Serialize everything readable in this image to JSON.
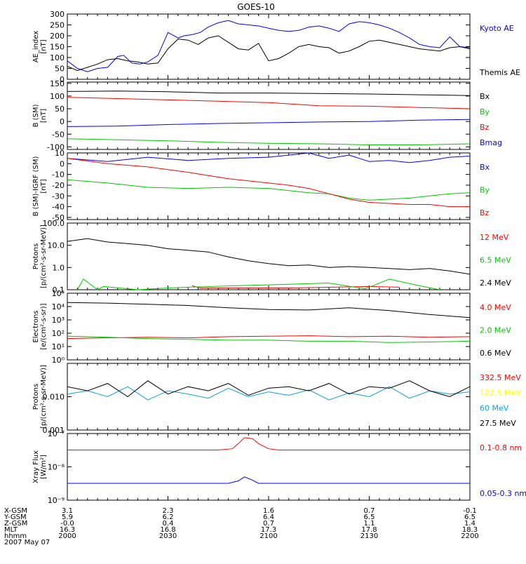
{
  "figure": {
    "title": "GOES-10",
    "date_label": "2007 May 07",
    "colors": {
      "black": "#000000",
      "blue": "#0000ff",
      "red": "#ff0000",
      "green": "#00c800",
      "yellow": "#ffff00",
      "cyan": "#0aa0dc"
    }
  },
  "chart_data": [
    {
      "type": "line",
      "ylabel": [
        "AE_index",
        "[nT]"
      ],
      "yscale": "linear",
      "ylim": [
        0,
        300
      ],
      "yticks": [
        0,
        50,
        100,
        150,
        200,
        250,
        300
      ],
      "yticklabels": [
        "0",
        "50",
        "100",
        "150",
        "200",
        "250",
        "300"
      ],
      "series": [
        {
          "name": "Kyoto AE",
          "color": "#0000ff",
          "x": [
            0,
            5,
            10,
            15,
            20,
            25,
            28,
            32,
            36,
            40,
            45,
            50,
            55,
            58,
            62,
            66,
            70,
            75,
            80,
            85,
            90,
            95,
            100,
            105,
            110,
            115,
            120,
            125,
            130,
            135,
            140,
            145,
            150,
            155,
            160,
            165,
            170,
            175,
            180,
            185,
            190,
            195,
            200
          ],
          "y": [
            85,
            50,
            35,
            50,
            55,
            105,
            110,
            75,
            70,
            80,
            110,
            215,
            190,
            200,
            205,
            215,
            240,
            260,
            270,
            255,
            250,
            245,
            235,
            225,
            220,
            225,
            240,
            245,
            235,
            220,
            255,
            265,
            260,
            250,
            235,
            215,
            190,
            160,
            150,
            145,
            195,
            150,
            145
          ]
        },
        {
          "name": "Themis AE",
          "color": "#000000",
          "x": [
            0,
            5,
            10,
            15,
            20,
            25,
            30,
            35,
            40,
            45,
            50,
            55,
            60,
            65,
            70,
            75,
            80,
            85,
            90,
            95,
            100,
            105,
            110,
            115,
            120,
            125,
            130,
            135,
            140,
            145,
            150,
            155,
            160,
            165,
            170,
            175,
            180,
            185,
            190,
            195,
            200
          ],
          "y": [
            60,
            40,
            55,
            70,
            90,
            95,
            85,
            80,
            70,
            75,
            140,
            185,
            180,
            160,
            190,
            200,
            170,
            140,
            135,
            165,
            85,
            95,
            120,
            150,
            160,
            150,
            145,
            120,
            130,
            150,
            175,
            180,
            170,
            160,
            150,
            140,
            135,
            130,
            145,
            150,
            140
          ]
        }
      ]
    },
    {
      "type": "line",
      "ylabel": [
        "B (SM)",
        "[nT]"
      ],
      "yscale": "linear",
      "ylim": [
        -110,
        155
      ],
      "yticks": [
        -100,
        -50,
        0,
        50,
        100,
        150
      ],
      "yticklabels": [
        "-100",
        "-50",
        "0",
        "50",
        "100",
        "150"
      ],
      "series": [
        {
          "name": "Bx",
          "color": "#000000",
          "x": [
            0,
            25,
            50,
            75,
            100,
            125,
            150,
            175,
            200
          ],
          "y": [
            118,
            120,
            117,
            112,
            112,
            110,
            108,
            105,
            102
          ]
        },
        {
          "name": "By",
          "color": "#00c800",
          "x": [
            0,
            25,
            50,
            75,
            100,
            125,
            150,
            175,
            200
          ],
          "y": [
            -68,
            -72,
            -76,
            -82,
            -86,
            -88,
            -92,
            -92,
            -88
          ]
        },
        {
          "name": "Bz",
          "color": "#ff0000",
          "x": [
            0,
            25,
            50,
            75,
            100,
            125,
            150,
            175,
            200
          ],
          "y": [
            95,
            90,
            85,
            80,
            74,
            62,
            60,
            55,
            50
          ]
        },
        {
          "name": "Bmag",
          "color": "#0000ff",
          "x": [
            0,
            25,
            50,
            75,
            100,
            125,
            150,
            175,
            200
          ],
          "y": [
            -20,
            -18,
            -12,
            -8,
            -5,
            -2,
            0,
            5,
            8
          ]
        }
      ]
    },
    {
      "type": "line",
      "ylabel": [
        "B (SM)-IGRF (SM)",
        "[nT]"
      ],
      "yscale": "linear",
      "ylim": [
        -52,
        10
      ],
      "yticks": [
        -50,
        -40,
        -30,
        -20,
        -10,
        0,
        10
      ],
      "yticklabels": [
        "-50",
        "-40",
        "-30",
        "-20",
        "-10",
        "0",
        "10"
      ],
      "series": [
        {
          "name": "Bx",
          "color": "#0000ff",
          "x": [
            0,
            20,
            40,
            60,
            80,
            100,
            110,
            120,
            130,
            140,
            150,
            160,
            170,
            180,
            190,
            200
          ],
          "y": [
            5,
            2,
            6,
            3,
            5,
            6,
            8,
            10,
            5,
            8,
            2,
            3,
            1,
            3,
            6,
            7
          ]
        },
        {
          "name": "By",
          "color": "#00c800",
          "x": [
            0,
            20,
            40,
            60,
            80,
            100,
            110,
            120,
            130,
            140,
            150,
            160,
            170,
            180,
            190,
            200
          ],
          "y": [
            -15,
            -18,
            -22,
            -23,
            -22,
            -23,
            -25,
            -27,
            -28,
            -32,
            -34,
            -33,
            -32,
            -30,
            -28,
            -27
          ]
        },
        {
          "name": "Bz",
          "color": "#ff0000",
          "x": [
            0,
            20,
            40,
            60,
            80,
            100,
            110,
            120,
            130,
            140,
            150,
            160,
            170,
            180,
            190,
            200
          ],
          "y": [
            5,
            0,
            -3,
            -8,
            -14,
            -18,
            -20,
            -23,
            -28,
            -33,
            -36,
            -37,
            -38,
            -38,
            -40,
            -40
          ]
        }
      ]
    },
    {
      "type": "line",
      "ylabel": [
        "Protons",
        "[p/(cm²-s-sr-MeV)]"
      ],
      "yscale": "log",
      "ylim": [
        0.1,
        100
      ],
      "yticks": [
        0.1,
        1,
        10,
        100
      ],
      "yticklabels": [
        "0.1",
        "1.0",
        "10.0",
        "100.0"
      ],
      "series": [
        {
          "name": "12 MeV",
          "color": "#ff0000",
          "x": [
            62,
            66,
            110,
            150,
            165
          ],
          "y": [
            0.15,
            0.12,
            0.12,
            0.14,
            0.13
          ]
        },
        {
          "name": "6.5 MeV",
          "color": "#00c800",
          "x": [
            5,
            8,
            15,
            18,
            35,
            50,
            60,
            130,
            148,
            160,
            175,
            185
          ],
          "y": [
            0.1,
            0.3,
            0.1,
            0.14,
            0.1,
            0.12,
            0.13,
            0.2,
            0.11,
            0.3,
            0.15,
            0.1
          ]
        },
        {
          "name": "2.4 MeV",
          "color": "#000000",
          "x": [
            0,
            10,
            20,
            30,
            40,
            50,
            60,
            70,
            80,
            90,
            100,
            110,
            120,
            130,
            140,
            150,
            160,
            170,
            180,
            190,
            200
          ],
          "y": [
            15,
            20,
            14,
            12,
            10,
            7,
            6,
            5,
            3,
            2,
            1.5,
            1.2,
            1.3,
            1.0,
            1.1,
            1.0,
            0.9,
            0.8,
            0.9,
            0.7,
            0.5
          ]
        }
      ]
    },
    {
      "type": "line",
      "ylabel": [
        "Electrons",
        "[e/(cm²-s-sr)]"
      ],
      "yscale": "log",
      "ylim": [
        1,
        100000
      ],
      "yticks": [
        1,
        10,
        100,
        1000,
        10000,
        100000
      ],
      "yticklabels": [
        "10⁰",
        "10¹",
        "10²",
        "10³",
        "10⁴",
        "10⁵"
      ],
      "series": [
        {
          "name": "4.0 MeV",
          "color": "#ff0000",
          "x": [
            0,
            20,
            40,
            60,
            80,
            100,
            120,
            140,
            160,
            180,
            200
          ],
          "y": [
            40,
            45,
            50,
            45,
            55,
            60,
            65,
            55,
            60,
            50,
            55
          ]
        },
        {
          "name": "2.0 MeV",
          "color": "#00c800",
          "x": [
            0,
            20,
            40,
            60,
            80,
            100,
            120,
            140,
            160,
            180,
            200
          ],
          "y": [
            60,
            50,
            40,
            35,
            30,
            30,
            25,
            25,
            20,
            22,
            25
          ]
        },
        {
          "name": "0.6 MeV",
          "color": "#000000",
          "x": [
            0,
            20,
            40,
            60,
            80,
            100,
            120,
            140,
            160,
            180,
            200
          ],
          "y": [
            20000,
            18000,
            15000,
            12000,
            8000,
            6000,
            5500,
            8000,
            5000,
            2500,
            1500
          ]
        }
      ]
    },
    {
      "type": "line",
      "ylabel": [
        "Protons",
        "[p/(cm²-s-sr-MeV)]"
      ],
      "yscale": "log",
      "ylim": [
        0.001,
        0.1
      ],
      "yticks": [
        0.001,
        0.01
      ],
      "yticklabels": [
        "0.001",
        "0.010"
      ],
      "series": [
        {
          "name": "332.5 MeV",
          "color": "#ff0000",
          "x": [],
          "y": []
        },
        {
          "name": "122.5 MeV",
          "color": "#ffff00",
          "x": [],
          "y": []
        },
        {
          "name": "60 MeV",
          "color": "#0aa0dc",
          "x": [
            0,
            10,
            20,
            30,
            40,
            50,
            60,
            70,
            80,
            90,
            100,
            110,
            120,
            130,
            140,
            150,
            160,
            170,
            180,
            190,
            200
          ],
          "y": [
            0.012,
            0.015,
            0.01,
            0.02,
            0.008,
            0.015,
            0.012,
            0.009,
            0.018,
            0.01,
            0.014,
            0.011,
            0.016,
            0.008,
            0.013,
            0.01,
            0.02,
            0.009,
            0.015,
            0.012,
            0.014
          ]
        },
        {
          "name": "27.5 MeV",
          "color": "#000000",
          "x": [
            0,
            10,
            20,
            30,
            40,
            50,
            60,
            70,
            80,
            90,
            100,
            110,
            120,
            130,
            140,
            150,
            160,
            170,
            180,
            190,
            200
          ],
          "y": [
            0.02,
            0.015,
            0.025,
            0.01,
            0.03,
            0.012,
            0.02,
            0.015,
            0.025,
            0.011,
            0.018,
            0.02,
            0.015,
            0.025,
            0.012,
            0.02,
            0.018,
            0.03,
            0.015,
            0.01,
            0.02
          ]
        }
      ]
    },
    {
      "type": "line",
      "ylabel": [
        "Xray Flux",
        "[W/m²]"
      ],
      "yscale": "log",
      "ylim": [
        1e-09,
        1e-07
      ],
      "yticks": [
        1e-09,
        1e-08,
        1e-07
      ],
      "yticklabels": [
        "10⁻⁹",
        "10⁻⁸",
        "10⁻⁷"
      ],
      "series": [
        {
          "name": "0.1-0.8 nm",
          "color": "#ff0000",
          "x": [
            0,
            75,
            82,
            85,
            88,
            92,
            95,
            100,
            105,
            200
          ],
          "y": [
            3.2e-08,
            3.2e-08,
            3.5e-08,
            5e-08,
            7.5e-08,
            7e-08,
            5e-08,
            3.5e-08,
            3.2e-08,
            3.2e-08
          ]
        },
        {
          "name": "0.05-0.3 nm",
          "color": "#0000ff",
          "x": [
            0,
            80,
            85,
            88,
            92,
            95,
            200
          ],
          "y": [
            3.2e-09,
            3.2e-09,
            3.8e-09,
            5e-09,
            4e-09,
            3.2e-09,
            3.2e-09
          ]
        }
      ]
    }
  ],
  "bottom_axis": {
    "row_labels": [
      "X-GSM",
      "Y-GSM",
      "Z-GSM",
      "MLT",
      "hhmm"
    ],
    "ticks": [
      {
        "values": [
          "3.1",
          "5.9",
          "-0.0",
          "16.3",
          "2000"
        ]
      },
      {
        "values": [
          "2.3",
          "6.2",
          "0.4",
          "16.8",
          "2030"
        ]
      },
      {
        "values": [
          "1.6",
          "6.4",
          "0.7",
          "17.3",
          "2100"
        ]
      },
      {
        "values": [
          "0.7",
          "6.5",
          "1.1",
          "17.8",
          "2130"
        ]
      },
      {
        "values": [
          "-0.1",
          "6.5",
          "1.4",
          "18.3",
          "2200"
        ]
      }
    ]
  }
}
